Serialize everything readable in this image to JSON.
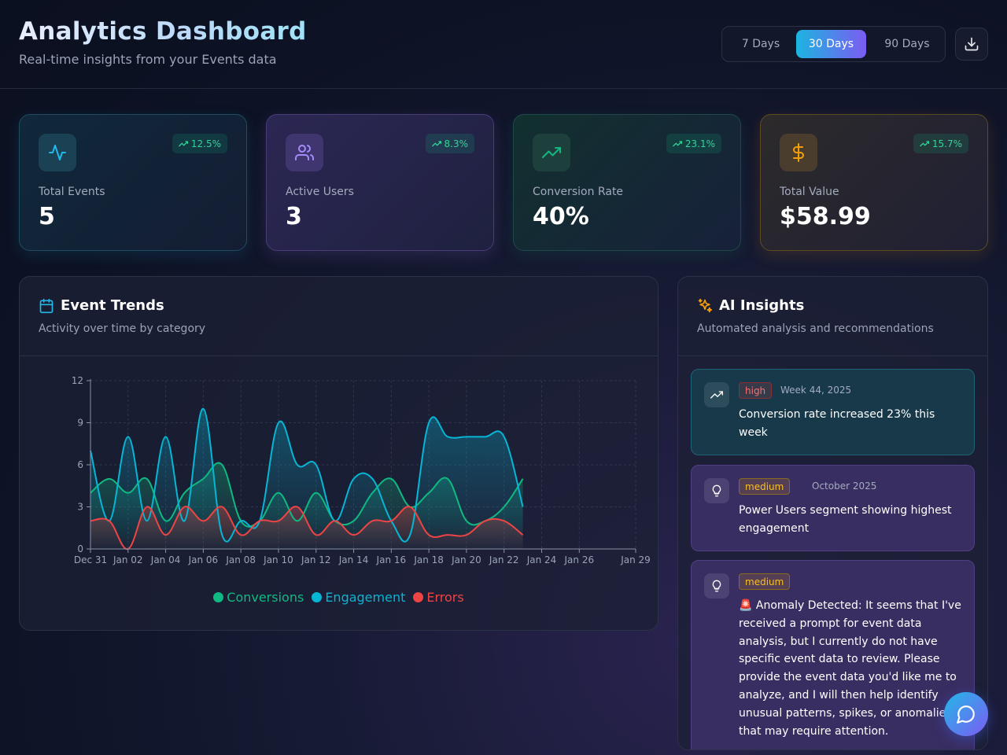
{
  "header": {
    "title": "Analytics Dashboard",
    "subtitle": "Real-time insights from your Events data",
    "ranges": [
      "7 Days",
      "30 Days",
      "90 Days"
    ],
    "active_range": "30 Days",
    "download_icon": "download-icon"
  },
  "stats": [
    {
      "label": "Total Events",
      "value": "5",
      "change": "12.5%",
      "icon": "activity-icon",
      "accent": "#22b8e8"
    },
    {
      "label": "Active Users",
      "value": "3",
      "change": "8.3%",
      "icon": "users-icon",
      "accent": "#a78bfa"
    },
    {
      "label": "Conversion Rate",
      "value": "40%",
      "change": "23.1%",
      "icon": "trending-up-icon",
      "accent": "#10b981"
    },
    {
      "label": "Total Value",
      "value": "$58.99",
      "change": "15.7%",
      "icon": "dollar-icon",
      "accent": "#f59e0b"
    }
  ],
  "trends": {
    "title": "Event Trends",
    "subtitle": "Activity over time by category",
    "icon": "calendar-icon"
  },
  "chart_data": {
    "type": "area",
    "x": [
      "Dec 31",
      "Jan 01",
      "Jan 02",
      "Jan 03",
      "Jan 04",
      "Jan 05",
      "Jan 06",
      "Jan 07",
      "Jan 08",
      "Jan 09",
      "Jan 10",
      "Jan 11",
      "Jan 12",
      "Jan 13",
      "Jan 14",
      "Jan 15",
      "Jan 16",
      "Jan 17",
      "Jan 18",
      "Jan 19",
      "Jan 20",
      "Jan 21",
      "Jan 22",
      "Jan 23"
    ],
    "x_ticks": [
      "Dec 31",
      "Jan 02",
      "Jan 04",
      "Jan 06",
      "Jan 08",
      "Jan 10",
      "Jan 12",
      "Jan 14",
      "Jan 16",
      "Jan 18",
      "Jan 20",
      "Jan 22",
      "Jan 24",
      "Jan 26",
      "Jan 29"
    ],
    "y_ticks": [
      0,
      3,
      6,
      9,
      12
    ],
    "ylim": [
      0,
      12
    ],
    "grid": true,
    "legend": "bottom",
    "series": [
      {
        "name": "Conversions",
        "color": "#10b981",
        "values": [
          4,
          5,
          4,
          5,
          2,
          4,
          5,
          6,
          2,
          2,
          4,
          2,
          4,
          2,
          2,
          4,
          5,
          3,
          4,
          5,
          2,
          2,
          3,
          5
        ]
      },
      {
        "name": "Engagement",
        "color": "#06b6d4",
        "values": [
          7,
          2,
          8,
          2,
          8,
          2,
          10,
          1,
          2,
          2,
          9,
          6,
          6,
          2,
          5,
          5,
          2,
          1,
          9,
          8,
          8,
          8,
          8,
          3
        ]
      },
      {
        "name": "Errors",
        "color": "#ef4444",
        "values": [
          2,
          2,
          0,
          3,
          1,
          3,
          2,
          3,
          1,
          2,
          2,
          3,
          1,
          2,
          1,
          2,
          2,
          3,
          1,
          1,
          1,
          2,
          2,
          1
        ]
      }
    ]
  },
  "insights": {
    "title": "AI Insights",
    "subtitle": "Automated analysis and recommendations",
    "icon": "sparkles-icon",
    "items": [
      {
        "priority": "high",
        "date": "Week 44, 2025",
        "text": "Conversion rate increased 23% this week",
        "icon": "trending-up-icon"
      },
      {
        "priority": "medium",
        "date": "October 2025",
        "text": "Power Users segment showing highest engagement",
        "icon": "lightbulb-icon"
      },
      {
        "priority": "medium",
        "date": "",
        "text": "🚨 Anomaly Detected: It seems that I've received a prompt for event data analysis, but I currently do not have specific event data to review. Please provide the event data you'd like me to analyze, and I will then help identify unusual patterns, spikes, or anomalies that may require attention.",
        "icon": "lightbulb-icon"
      }
    ]
  },
  "chat_button_icon": "chat-icon"
}
